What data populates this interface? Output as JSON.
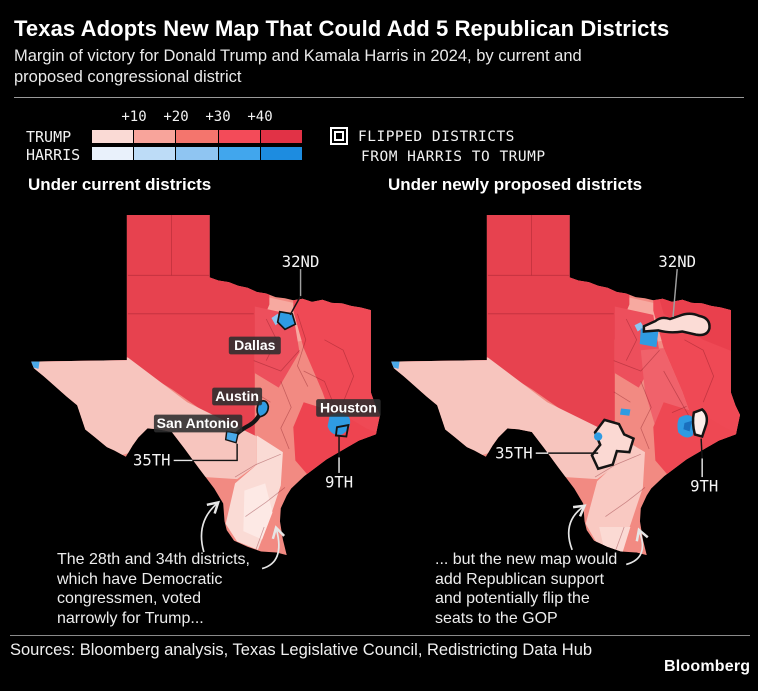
{
  "header": {
    "title": "Texas Adopts New Map That Could Add 5 Republican Districts",
    "subtitle": "Margin of victory for Donald Trump and Kamala Harris in 2024, by current and proposed congressional district"
  },
  "legend": {
    "trump_label": "TRUMP",
    "harris_label": "HARRIS",
    "ticks": [
      "+10",
      "+20",
      "+30",
      "+40"
    ],
    "trump_colors": [
      "#fadad5",
      "#f8a49b",
      "#f4756d",
      "#f34b59",
      "#e13246"
    ],
    "harris_colors": [
      "#e9f1fb",
      "#bddcf7",
      "#8fc5f2",
      "#41a6ed",
      "#1d8ce0"
    ],
    "flipped_line1": "FLIPPED DISTRICTS",
    "flipped_line2": "FROM HARRIS TO TRUMP"
  },
  "maps": {
    "left": {
      "heading": "Under current districts",
      "cities": [
        "Dallas",
        "Austin",
        "San Antonio",
        "Houston"
      ],
      "district_labels": [
        "32ND",
        "35TH",
        "9TH"
      ],
      "annotation": "The 28th and 34th districts,\nwhich have Democratic\ncongressmen, voted\nnarrowly for Trump..."
    },
    "right": {
      "heading": "Under newly proposed districts",
      "district_labels": [
        "32ND",
        "35TH",
        "9TH"
      ],
      "annotation": "... but the new map would\nadd Republican support\nand potentially flip the\nseats to the GOP"
    }
  },
  "footer": {
    "sources": "Sources: Bloomberg analysis, Texas Legislative Council, Redistricting Data Hub",
    "brand": "Bloomberg"
  },
  "chart_data": {
    "type": "heatmap",
    "subtype": "choropleth-map-pair",
    "geography": "Texas congressional districts",
    "metric": "Margin of victory for Donald Trump and Kamala Harris in 2024",
    "title": "Texas Adopts New Map That Could Add 5 Republican Districts",
    "legend_position": "top-left",
    "scale": {
      "bins": [
        "0-10",
        "10-20",
        "20-30",
        "30-40",
        "40+"
      ],
      "tick_labels": [
        "+10",
        "+20",
        "+30",
        "+40"
      ],
      "trump_colors": [
        "#fadad5",
        "#f8a49b",
        "#f4756d",
        "#f34b59",
        "#e13246"
      ],
      "harris_colors": [
        "#e9f1fb",
        "#bddcf7",
        "#8fc5f2",
        "#41a6ed",
        "#1d8ce0"
      ]
    },
    "flipped_marker": "black outline = district flipped from Harris to Trump",
    "panels": [
      {
        "title": "Under current districts",
        "labeled_districts": [
          "32ND",
          "35TH",
          "9TH"
        ],
        "city_labels": [
          "Dallas",
          "Austin",
          "San Antonio",
          "Houston"
        ],
        "annotation": "The 28th and 34th districts, which have Democratic congressmen, voted narrowly for Trump..."
      },
      {
        "title": "Under newly proposed districts",
        "labeled_districts": [
          "32ND",
          "35TH",
          "9TH"
        ],
        "flipped_districts_outlined": [
          "32ND",
          "35TH",
          "9TH"
        ],
        "annotation": "... but the new map would add Republican support and potentially flip the seats to the GOP"
      }
    ]
  }
}
